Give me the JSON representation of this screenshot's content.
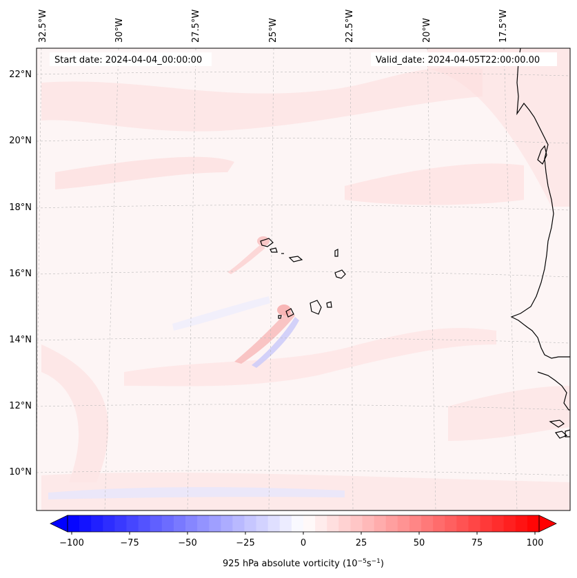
{
  "header": {
    "start_date": "Start date: 2024-04-04_00:00:00",
    "valid_date": "Valid_date: 2024-04-05T22:00:00.00"
  },
  "longitude_labels": [
    "32.5°W",
    "30°W",
    "27.5°W",
    "25°W",
    "22.5°W",
    "20°W",
    "17.5°W"
  ],
  "latitude_labels": [
    "22°N",
    "20°N",
    "18°N",
    "16°N",
    "14°N",
    "12°N",
    "10°N"
  ],
  "colorbar": {
    "ticks": [
      "−100",
      "−75",
      "−50",
      "−25",
      "0",
      "25",
      "50",
      "75",
      "100"
    ],
    "label_main": "925 hPa absolute vorticity (10",
    "label_exp1": "−5",
    "label_mid": "s",
    "label_exp2": "−1",
    "label_end": ")",
    "min": -100,
    "max": 100,
    "negative_color": "#0000ff",
    "positive_color": "#ff0000"
  },
  "map": {
    "background_color": "#fdf5f5",
    "coastline_color": "#000000",
    "field": "925 hPa absolute vorticity"
  }
}
